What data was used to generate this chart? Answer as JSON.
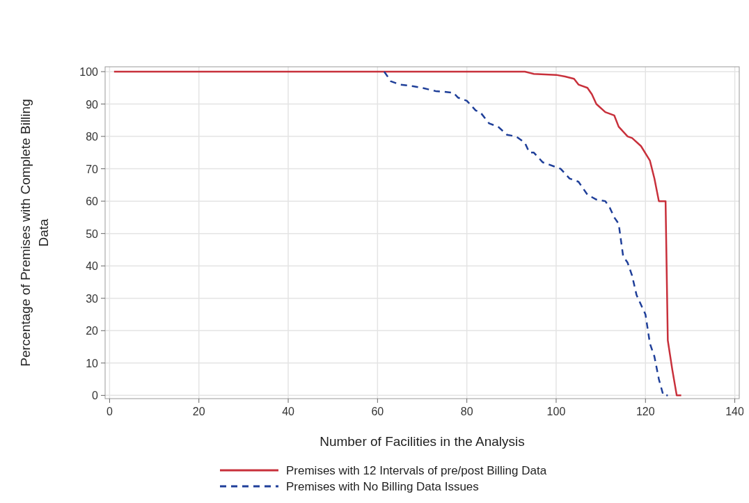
{
  "chart_data": {
    "type": "line",
    "xlabel": "Number of Facilities in the Analysis",
    "ylabel": "Percentage of Premises with Complete Billing Data",
    "xlim": [
      -1,
      141
    ],
    "ylim": [
      -1,
      101.5
    ],
    "xticks": [
      0,
      20,
      40,
      60,
      80,
      100,
      120,
      140
    ],
    "yticks": [
      0,
      10,
      20,
      30,
      40,
      50,
      60,
      70,
      80,
      90,
      100
    ],
    "grid": true,
    "legend": "bottom",
    "series": [
      {
        "name": "Premises with 12 Intervals of pre/post Billing Data",
        "color": "#c8303b",
        "line_style": "solid",
        "x": [
          1,
          93,
          95,
          100,
          102,
          104,
          105,
          107,
          108,
          109,
          111,
          113,
          114,
          116,
          117,
          119,
          121,
          122,
          123,
          124.5,
          125,
          126,
          127,
          128
        ],
        "values": [
          100,
          100,
          99.3,
          99,
          98.5,
          97.8,
          96,
          95,
          93,
          90,
          87.5,
          86.5,
          83,
          80,
          79.5,
          77,
          72.5,
          67,
          60,
          60,
          17,
          8,
          0,
          0
        ]
      },
      {
        "name": "Premises with No Billing Data Issues",
        "color": "#1f3f99",
        "line_style": "dashed",
        "x": [
          61.5,
          63,
          65,
          68,
          70,
          73,
          77,
          78,
          80,
          82,
          83,
          85,
          87,
          89,
          91,
          93,
          94,
          95,
          97,
          100,
          101,
          103,
          105,
          107,
          109,
          111,
          112,
          113,
          114,
          115,
          116,
          117,
          118,
          120,
          121,
          122,
          123,
          124,
          125
        ],
        "values": [
          100,
          97,
          96,
          95.5,
          95,
          94,
          93.5,
          92,
          91,
          88,
          87.5,
          84,
          83,
          80.5,
          80,
          78,
          75,
          75,
          72,
          70.5,
          70,
          67,
          66,
          62,
          60.5,
          60,
          58,
          55,
          53,
          43,
          41,
          37,
          31,
          25,
          16,
          12,
          5,
          0,
          0
        ]
      }
    ]
  }
}
